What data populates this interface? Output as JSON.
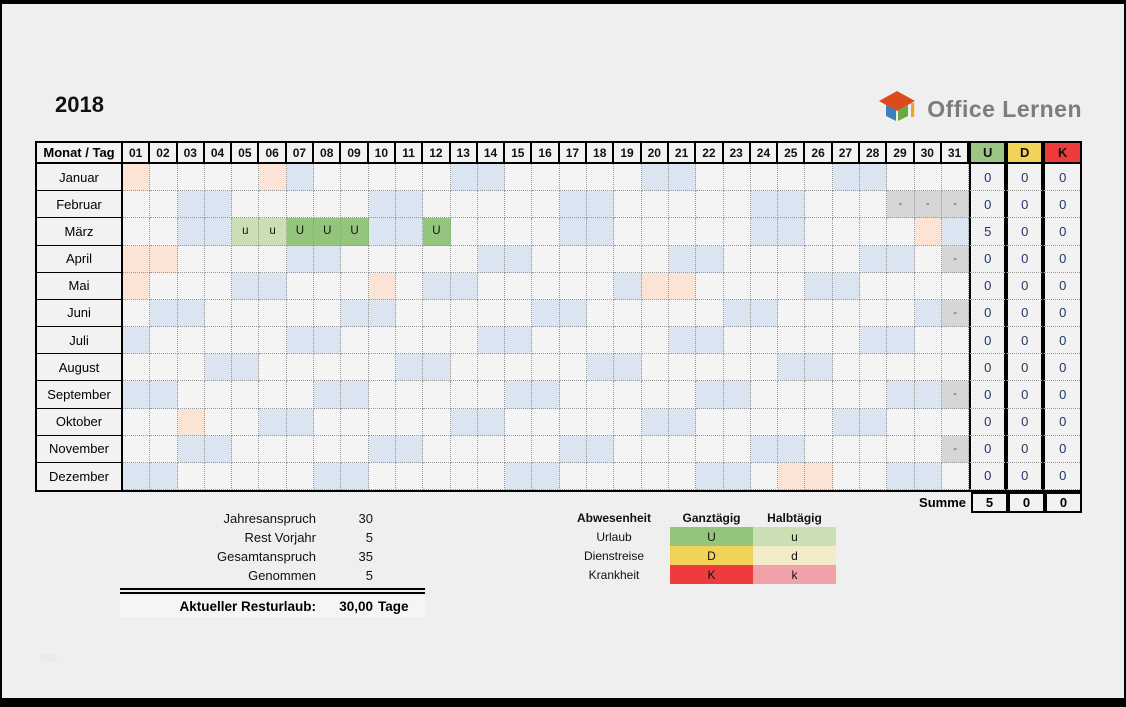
{
  "page": {
    "title": "2018",
    "footer": "http"
  },
  "logo": {
    "text": "Office Lernen"
  },
  "colors": {
    "weekend": "#dbe5f1",
    "holiday": "#fbe4d5",
    "invalid": "#d6d6d6",
    "vacation_full": "#94c57d",
    "vacation_half": "#cbdfb4",
    "abs_u": "#9cc684",
    "abs_d": "#f1d35a",
    "abs_k": "#ee3b3b",
    "count_text": "#1f3864"
  },
  "table": {
    "corner": "Monat / Tag",
    "days": [
      "01",
      "02",
      "03",
      "04",
      "05",
      "06",
      "07",
      "08",
      "09",
      "10",
      "11",
      "12",
      "13",
      "14",
      "15",
      "16",
      "17",
      "18",
      "19",
      "20",
      "21",
      "22",
      "23",
      "24",
      "25",
      "26",
      "27",
      "28",
      "29",
      "30",
      "31"
    ],
    "abs_cols": [
      {
        "key": "U",
        "color": "#9cc684"
      },
      {
        "key": "D",
        "color": "#f1d35a"
      },
      {
        "key": "K",
        "color": "#ee3b3b"
      }
    ],
    "invalid_mark": "-",
    "months": [
      {
        "name": "Januar",
        "cells": {
          "1": "h",
          "6": "h",
          "7": "w",
          "13": "w",
          "14": "w",
          "20": "w",
          "21": "w",
          "27": "w",
          "28": "w"
        },
        "u": "0",
        "d": "0",
        "k": "0"
      },
      {
        "name": "Februar",
        "cells": {
          "3": "w",
          "4": "w",
          "10": "w",
          "11": "w",
          "17": "w",
          "18": "w",
          "24": "w",
          "25": "w",
          "29": "x",
          "30": "x",
          "31": "x"
        },
        "u": "0",
        "d": "0",
        "k": "0"
      },
      {
        "name": "März",
        "cells": {
          "3": "w",
          "4": "w",
          "5": "u",
          "6": "u",
          "7": "U",
          "8": "U",
          "9": "U",
          "10": "w",
          "11": "w",
          "12": "U",
          "17": "w",
          "18": "w",
          "24": "w",
          "25": "w",
          "30": "h",
          "31": "w"
        },
        "u": "5",
        "d": "0",
        "k": "0"
      },
      {
        "name": "April",
        "cells": {
          "1": "h",
          "2": "h",
          "7": "w",
          "8": "w",
          "14": "w",
          "15": "w",
          "21": "w",
          "22": "w",
          "28": "w",
          "29": "w",
          "31": "x"
        },
        "u": "0",
        "d": "0",
        "k": "0"
      },
      {
        "name": "Mai",
        "cells": {
          "1": "h",
          "5": "w",
          "6": "w",
          "10": "h",
          "12": "w",
          "13": "w",
          "19": "w",
          "20": "h",
          "21": "h",
          "26": "w",
          "27": "w"
        },
        "u": "0",
        "d": "0",
        "k": "0"
      },
      {
        "name": "Juni",
        "cells": {
          "2": "w",
          "3": "w",
          "9": "w",
          "10": "w",
          "16": "w",
          "17": "w",
          "23": "w",
          "24": "w",
          "30": "w",
          "31": "x"
        },
        "u": "0",
        "d": "0",
        "k": "0"
      },
      {
        "name": "Juli",
        "cells": {
          "1": "w",
          "7": "w",
          "8": "w",
          "14": "w",
          "15": "w",
          "21": "w",
          "22": "w",
          "28": "w",
          "29": "w"
        },
        "u": "0",
        "d": "0",
        "k": "0"
      },
      {
        "name": "August",
        "cells": {
          "4": "w",
          "5": "w",
          "11": "w",
          "12": "w",
          "18": "w",
          "19": "w",
          "25": "w",
          "26": "w"
        },
        "u": "0",
        "d": "0",
        "k": "0"
      },
      {
        "name": "September",
        "cells": {
          "1": "w",
          "2": "w",
          "8": "w",
          "9": "w",
          "15": "w",
          "16": "w",
          "22": "w",
          "23": "w",
          "29": "w",
          "30": "w",
          "31": "x"
        },
        "u": "0",
        "d": "0",
        "k": "0"
      },
      {
        "name": "Oktober",
        "cells": {
          "3": "h",
          "6": "w",
          "7": "w",
          "13": "w",
          "14": "w",
          "20": "w",
          "21": "w",
          "27": "w",
          "28": "w"
        },
        "u": "0",
        "d": "0",
        "k": "0"
      },
      {
        "name": "November",
        "cells": {
          "3": "w",
          "4": "w",
          "10": "w",
          "11": "w",
          "17": "w",
          "18": "w",
          "24": "w",
          "25": "w",
          "31": "x"
        },
        "u": "0",
        "d": "0",
        "k": "0"
      },
      {
        "name": "Dezember",
        "cells": {
          "1": "w",
          "2": "w",
          "8": "w",
          "9": "w",
          "15": "w",
          "16": "w",
          "22": "w",
          "23": "w",
          "25": "h",
          "26": "h",
          "29": "w",
          "30": "w"
        },
        "u": "0",
        "d": "0",
        "k": "0"
      }
    ],
    "summe": {
      "label": "Summe",
      "u": "5",
      "d": "0",
      "k": "0"
    }
  },
  "summary": {
    "rows": [
      {
        "label": "Jahresanspruch",
        "value": "30"
      },
      {
        "label": "Rest Vorjahr",
        "value": "5"
      },
      {
        "label": "Gesamtanspruch",
        "value": "35"
      },
      {
        "label": "Genommen",
        "value": "5"
      }
    ],
    "result": {
      "label": "Aktueller Resturlaub:",
      "value": "30,00",
      "unit": "Tage"
    }
  },
  "legend": {
    "headers": [
      "Abwesenheit",
      "Ganztägig",
      "Halbtägig"
    ],
    "rows": [
      {
        "label": "Urlaub",
        "full": "U",
        "half": "u",
        "full_color": "#94c57d",
        "half_color": "#cbdfb4"
      },
      {
        "label": "Dienstreise",
        "full": "D",
        "half": "d",
        "full_color": "#f1d35a",
        "half_color": "#f2ecc8"
      },
      {
        "label": "Krankheit",
        "full": "K",
        "half": "k",
        "full_color": "#ee3b3b",
        "half_color": "#f0a2a8"
      }
    ]
  }
}
